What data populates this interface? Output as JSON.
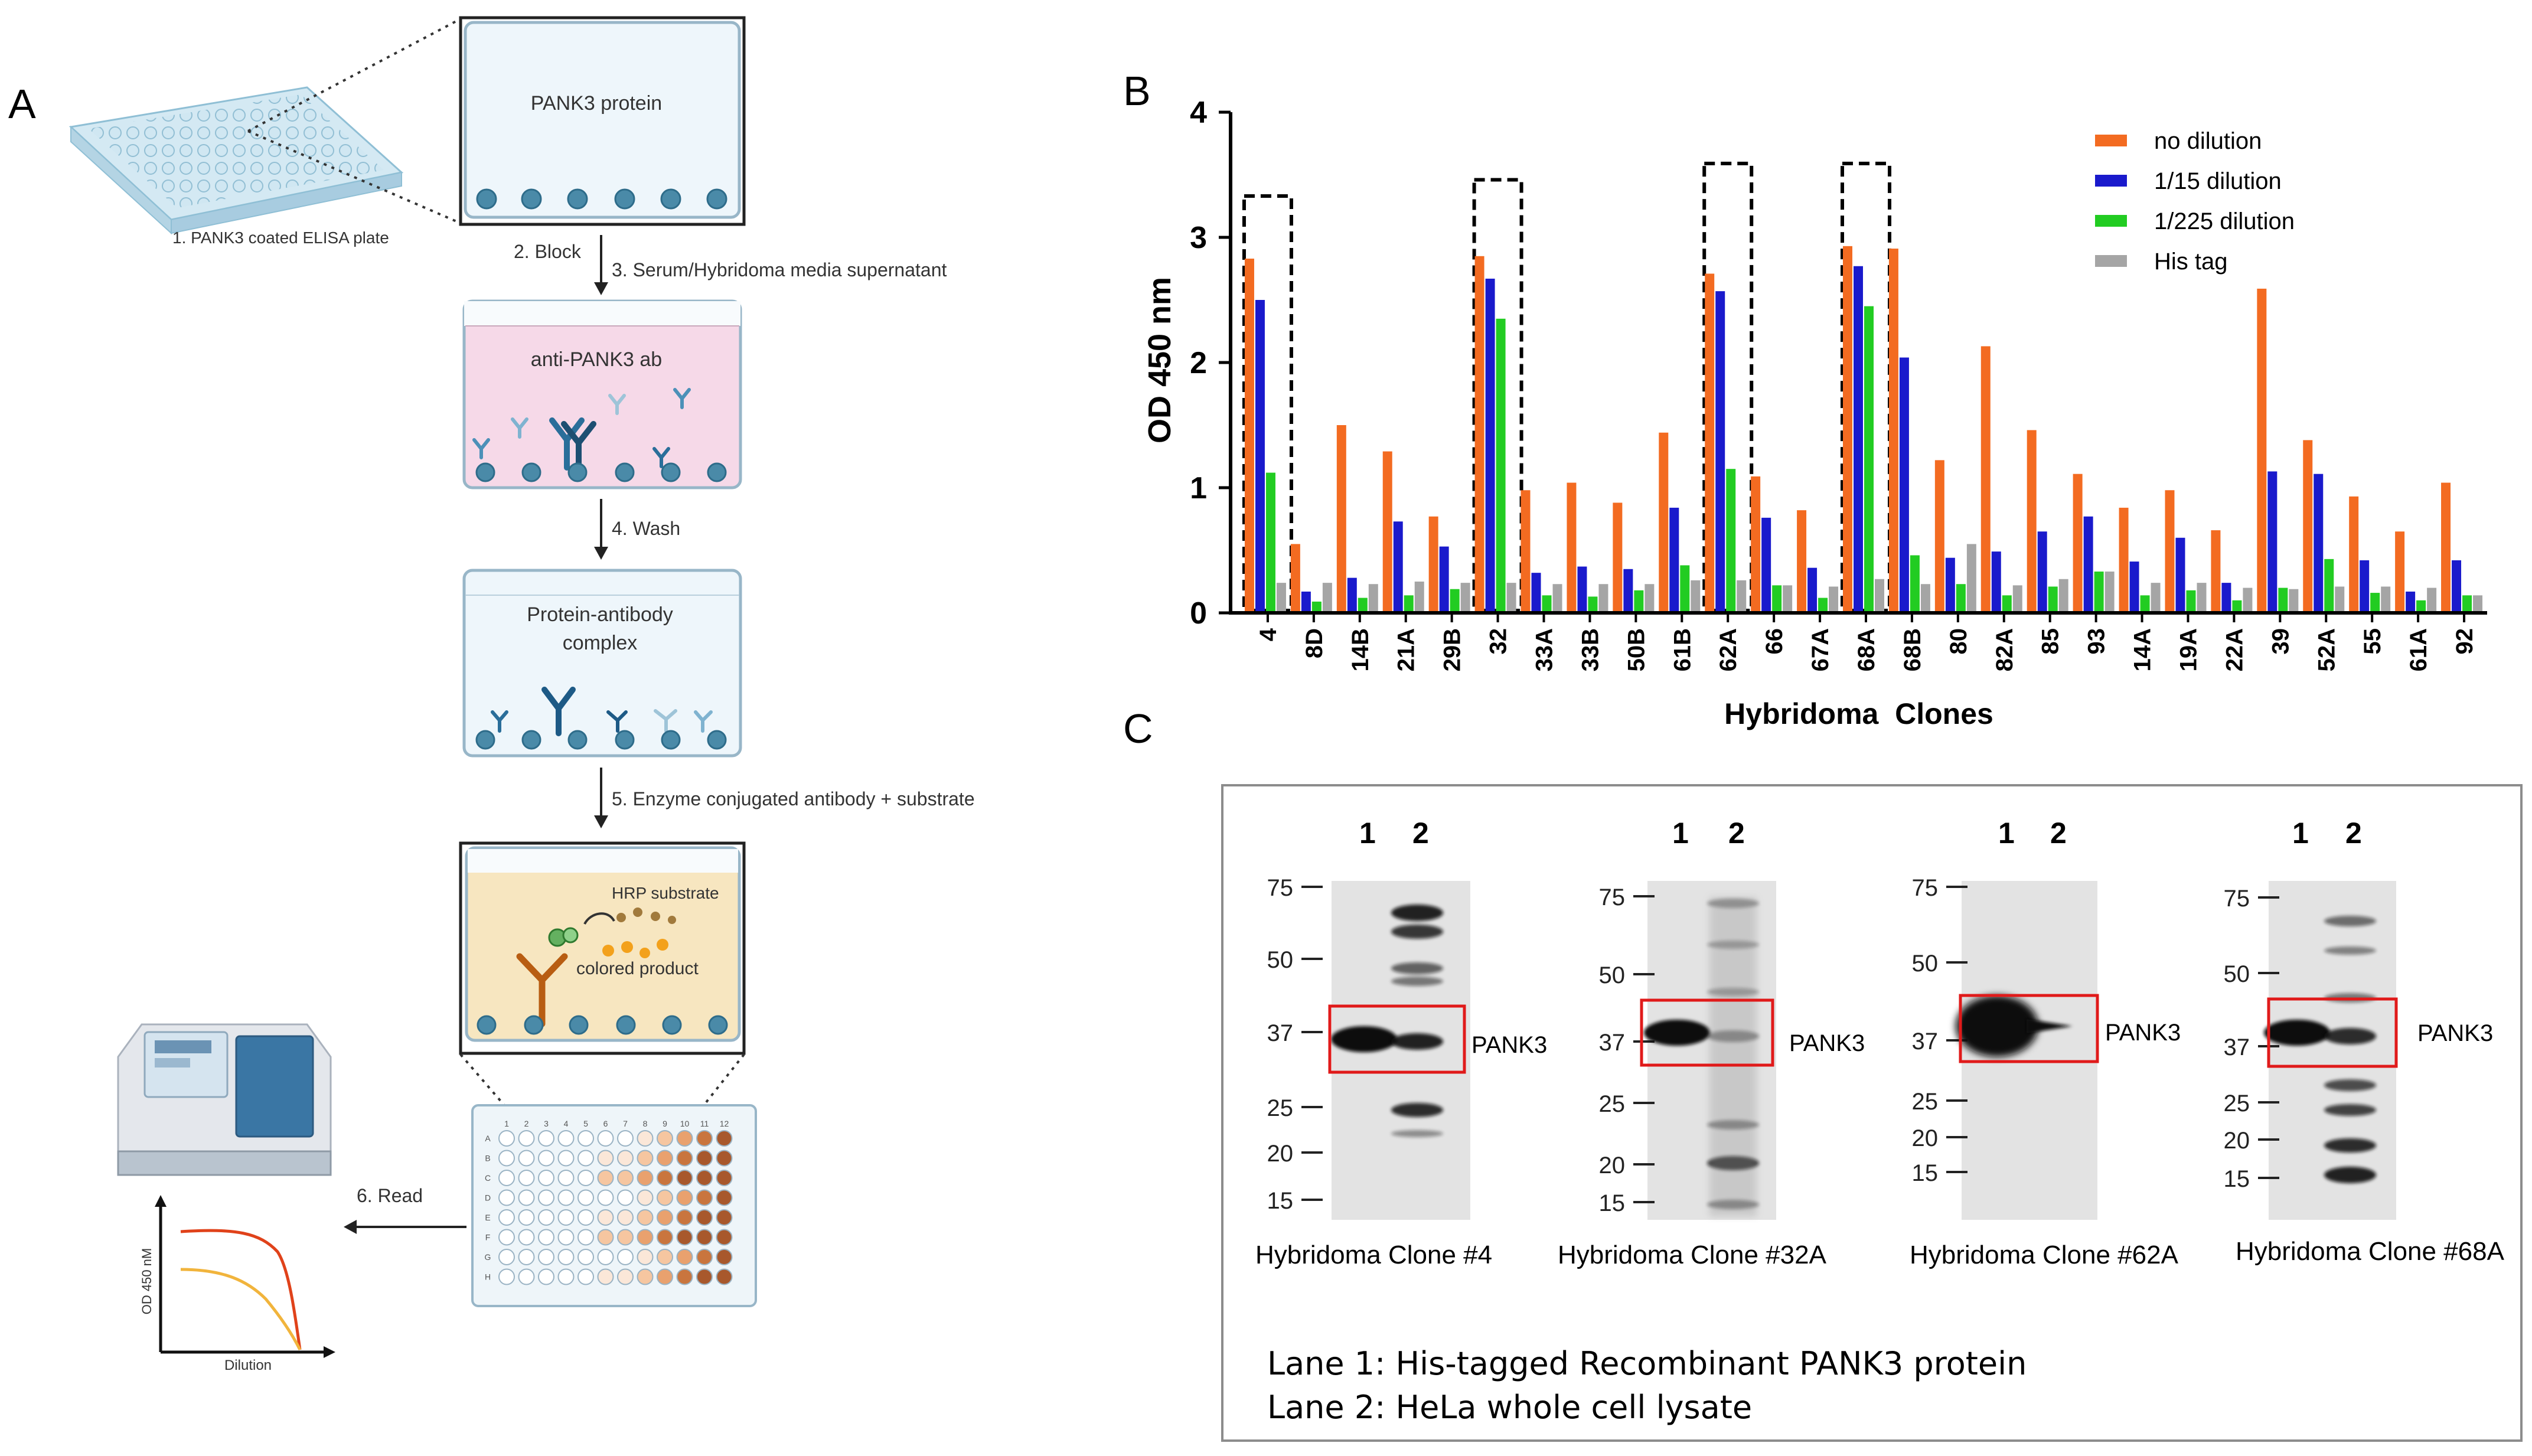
{
  "panels": {
    "a": "A",
    "b": "B",
    "c": "C"
  },
  "panel_a": {
    "plate_caption": "1. PANK3 coated ELISA plate",
    "well1_label": "PANK3 protein",
    "step2": "2. Block",
    "step3": "3. Serum/Hybridoma media supernatant",
    "well2_label": "anti-PANK3 ab",
    "step4": "4. Wash",
    "well3_line1": "Protein-antibody",
    "well3_line2": "complex",
    "step5": "5. Enzyme conjugated antibody + substrate",
    "hrp_label": "HRP substrate",
    "colored_label": "colored product",
    "step6": "6. Read",
    "mini_ylabel": "OD 450 nM",
    "mini_xlabel": "Dilution",
    "plate_row_letters": [
      "A",
      "B",
      "C",
      "D",
      "E",
      "F",
      "G",
      "H"
    ],
    "plate_col_numbers": [
      "1",
      "2",
      "3",
      "4",
      "5",
      "6",
      "7",
      "8",
      "9",
      "10",
      "11",
      "12"
    ]
  },
  "chart_data": {
    "type": "bar",
    "title": "",
    "xlabel": "Hybridoma  Clones",
    "ylabel": "OD 450 nm",
    "ylim": [
      0,
      4
    ],
    "yticks": [
      "0",
      "1",
      "2",
      "3",
      "4"
    ],
    "categories": [
      "4",
      "8D",
      "14B",
      "21A",
      "29B",
      "32",
      "33A",
      "33B",
      "50B",
      "61B",
      "62A",
      "66",
      "67A",
      "68A",
      "68B",
      "80",
      "82A",
      "85",
      "93",
      "14A",
      "19A",
      "22A",
      "39",
      "52A",
      "55",
      "61A",
      "92"
    ],
    "series": [
      {
        "name": "no dilution",
        "color": "#F36B21",
        "values": [
          2.83,
          0.55,
          1.5,
          1.29,
          0.77,
          2.85,
          0.98,
          1.04,
          0.88,
          1.44,
          2.71,
          1.09,
          0.82,
          2.93,
          2.91,
          1.22,
          2.13,
          1.46,
          1.11,
          0.84,
          0.98,
          0.66,
          2.59,
          1.38,
          0.93,
          0.65,
          1.04
        ]
      },
      {
        "name": "1/15 dilution",
        "color": "#1A1ACC",
        "values": [
          2.5,
          0.17,
          0.28,
          0.73,
          0.53,
          2.67,
          0.32,
          0.37,
          0.35,
          0.84,
          2.57,
          0.76,
          0.36,
          2.77,
          2.04,
          0.44,
          0.49,
          0.65,
          0.77,
          0.41,
          0.6,
          0.24,
          1.13,
          1.11,
          0.42,
          0.17,
          0.42
        ]
      },
      {
        "name": "1/225 dilution",
        "color": "#22CC22",
        "values": [
          1.12,
          0.09,
          0.12,
          0.14,
          0.19,
          2.35,
          0.14,
          0.13,
          0.18,
          0.38,
          1.15,
          0.22,
          0.12,
          2.45,
          0.46,
          0.23,
          0.14,
          0.21,
          0.33,
          0.14,
          0.18,
          0.1,
          0.2,
          0.43,
          0.16,
          0.1,
          0.14
        ]
      },
      {
        "name": "His tag",
        "color": "#A5A5A5",
        "values": [
          0.24,
          0.24,
          0.23,
          0.25,
          0.24,
          0.24,
          0.23,
          0.23,
          0.23,
          0.26,
          0.26,
          0.22,
          0.21,
          0.27,
          0.23,
          0.55,
          0.22,
          0.27,
          0.33,
          0.24,
          0.24,
          0.2,
          0.19,
          0.21,
          0.21,
          0.2,
          0.14
        ]
      }
    ],
    "highlighted_clones": [
      "4",
      "32",
      "62A",
      "68A"
    ],
    "highlight_box_tops": [
      3.33,
      3.46,
      3.59,
      3.59
    ],
    "legend_position": "top-right"
  },
  "panel_c": {
    "lanes": [
      "1",
      "2"
    ],
    "band_label": "PANK3",
    "blots": [
      {
        "caption": "Hybridoma Clone #4",
        "markers": [
          "75",
          "50",
          "37",
          "25",
          "20",
          "15"
        ]
      },
      {
        "caption": "Hybridoma Clone #32A",
        "markers": [
          "75",
          "50",
          "37",
          "25",
          "20",
          "15"
        ]
      },
      {
        "caption": "Hybridoma Clone #62A",
        "markers": [
          "75",
          "50",
          "37",
          "25",
          "20",
          "15"
        ]
      },
      {
        "caption": "Hybridoma Clone #68A",
        "markers": [
          "75",
          "50",
          "37",
          "25",
          "20",
          "15"
        ]
      }
    ],
    "legend_line1": "Lane 1: His-tagged Recombinant PANK3 protein",
    "legend_line2": "Lane 2: HeLa whole cell lysate"
  }
}
